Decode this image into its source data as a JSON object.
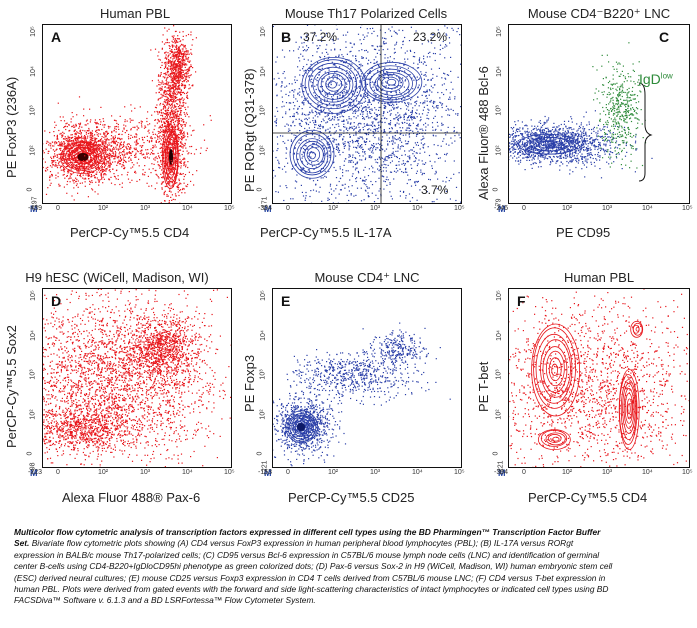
{
  "panels": [
    {
      "letter": "A",
      "title": "Human PBL",
      "xlabel": "PerCP-Cy™5.5   CD4",
      "ylabel": "PE  FoxP3 (236A)",
      "xticks": [
        "-439",
        "0",
        "10²",
        "10³",
        "10⁴",
        "10⁵"
      ],
      "yticks": [
        "-197",
        "0",
        "10²",
        "10³",
        "10⁴",
        "10⁵"
      ],
      "color": "#e8161b"
    },
    {
      "letter": "B",
      "title": "Mouse Th17 Polarized Cells",
      "xlabel": "PerCP-Cy™5.5   IL-17A",
      "ylabel": "PE  RORgt (Q31-378)",
      "xticks": [
        "-304",
        "0",
        "10²",
        "10³",
        "10⁴",
        "10⁵"
      ],
      "yticks": [
        "-171",
        "0",
        "10²",
        "10³",
        "10⁴",
        "10⁵"
      ],
      "color": "#2a3fa8",
      "quadrants": {
        "ul": "37.2%",
        "ur": "23.2%",
        "lr": "3.7%"
      }
    },
    {
      "letter": "C",
      "title": "Mouse CD4⁻B220⁺ LNC",
      "xlabel": "PE   CD95",
      "ylabel": "Alexa Fluor® 488  Bcl-6",
      "xticks": [
        "-246",
        "0",
        "10²",
        "10³",
        "10⁴",
        "10⁵"
      ],
      "yticks": [
        "-79",
        "0",
        "10²",
        "10³",
        "10⁴",
        "10⁵"
      ],
      "color": "#2a3fa8",
      "annotation": {
        "text": "IgD",
        "sup": "low",
        "color": "#2e8b3a"
      }
    },
    {
      "letter": "D",
      "title": "H9 hESC (WiCell, Madison, WI)",
      "xlabel": "Alexa Fluor 488® Pax-6",
      "ylabel": "PerCP-Cy™5.5 Sox2",
      "xticks": [
        "-223",
        "0",
        "10²",
        "10³",
        "10⁴",
        "10⁵"
      ],
      "yticks": [
        "-98",
        "0",
        "10²",
        "10³",
        "10⁴",
        "10⁵"
      ],
      "color": "#e8161b"
    },
    {
      "letter": "E",
      "title": "Mouse CD4⁺ LNC",
      "xlabel": "PerCP-Cy™5.5   CD25",
      "ylabel": "PE   Foxp3",
      "xticks": [
        "-153",
        "0",
        "10²",
        "10³",
        "10⁴",
        "10⁵"
      ],
      "yticks": [
        "-221",
        "0",
        "10²",
        "10³",
        "10⁴",
        "10⁵"
      ],
      "color": "#2a3fa8"
    },
    {
      "letter": "F",
      "title": "Human PBL",
      "xlabel": "PerCP-Cy™5.5    CD4",
      "ylabel": "PE   T-bet",
      "xticks": [
        "-304",
        "0",
        "10²",
        "10³",
        "10⁴",
        "10⁵"
      ],
      "yticks": [
        "-221",
        "0",
        "10²",
        "10³",
        "10⁴",
        "10⁵"
      ],
      "color": "#e8161b"
    }
  ],
  "m_marker": "M",
  "caption": {
    "bold": "Multicolor flow cytometric analysis of transcription factors expressed in different cell types using the BD Pharmingen™ Transcription Factor Buffer Set.",
    "body": " Bivariate flow cytometric plots showing (A) CD4 versus FoxP3 expression in human peripheral blood lymphocytes (PBL); (B) IL-17A versus RORgt expression in BALB/c mouse Th17-polarized cells; (C) CD95 versus Bcl-6 expression in C57BL/6 mouse lymph node cells (LNC) and identification of germinal center B-cells using CD4-B220+IgDloCD95hi phenotype as green colorized dots; (D) Pax-6 versus Sox-2 in H9 (WiCell, Madison, WI) human embryonic stem cell (ESC) derived neural cultures; (E) mouse CD25 versus Foxp3 expression in CD4 T cells derived from C57BL/6 mouse LNC; (F) CD4 versus T-bet expression in human PBL. Plots were derived from gated events with the forward and side light-scattering characteristics of intact lymphocytes or indicated cell types using BD FACSDiva™ Software v. 6.1.3 and a BD LSRFortessa™ Flow Cytometer System."
  }
}
